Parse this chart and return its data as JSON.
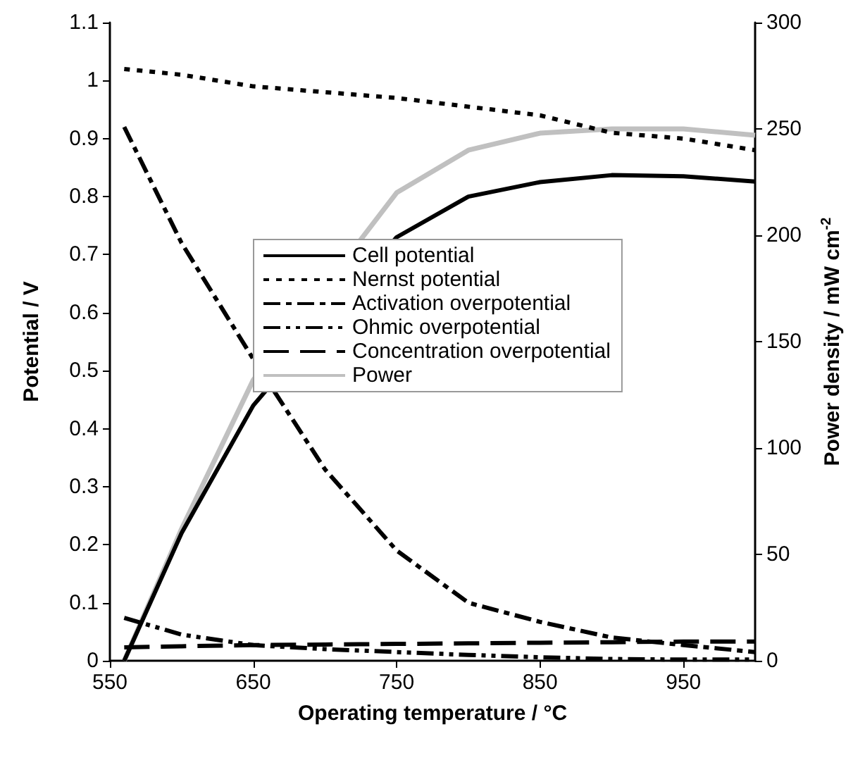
{
  "chart_data": {
    "type": "line",
    "xlabel": "Operating temperature / °C",
    "ylabel": "Potential / V",
    "y2label": "Power density / mW cm$^{-2}$",
    "x": [
      560,
      600,
      650,
      700,
      750,
      800,
      850,
      900,
      950,
      1000
    ],
    "series": [
      {
        "name": "Cell potential",
        "color": "#000000",
        "line_style": "solid",
        "values": [
          0,
          0.22,
          0.44,
          null,
          0.73,
          0.8,
          0.825,
          0.837,
          0.835,
          0.826
        ]
      },
      {
        "name": "Nernst potential",
        "color": "#000000",
        "line_style": "dotted",
        "values": [
          1.02,
          1.01,
          0.99,
          0.98,
          0.97,
          0.955,
          0.94,
          0.91,
          0.9,
          0.88
        ]
      },
      {
        "name": "Activation overpotential",
        "color": "#000000",
        "line_style": "dashed",
        "values": [
          0.92,
          0.72,
          0.52,
          0.33,
          0.19,
          0.1,
          0.067,
          0.04,
          0.027,
          0.015
        ]
      },
      {
        "name": "Ohmic overpotential",
        "color": "#000000",
        "line_style": "dashed",
        "values": [
          0.074,
          0.045,
          0.027,
          0.02,
          0.015,
          0.01,
          0.006,
          0.003,
          0.002,
          0.002
        ]
      },
      {
        "name": "Concentration overpotential",
        "color": "#000000",
        "line_style": "dashed",
        "values": [
          0.023,
          0.025,
          0.027,
          0.028,
          0.029,
          0.03,
          0.031,
          0.032,
          0.033,
          0.033
        ]
      },
      {
        "name": "Power",
        "color": "#c0c0c0",
        "line_style": "solid",
        "axis": "y2",
        "values": [
          0,
          62,
          132,
          null,
          220,
          240,
          248,
          250,
          250,
          247
        ]
      }
    ],
    "xlim": [
      550,
      1000
    ],
    "xticks": [
      550,
      650,
      750,
      850,
      950
    ],
    "ylim": [
      0,
      1.1
    ],
    "yticks": [
      0,
      0.1,
      0.2,
      0.3,
      0.4,
      0.5,
      0.6,
      0.7,
      0.8,
      0.9,
      1,
      1.1
    ],
    "y2lim": [
      0,
      300
    ],
    "y2ticks": [
      0,
      50,
      100,
      150,
      200,
      250,
      300
    ],
    "grid": false,
    "legend": "center",
    "marker": "none"
  }
}
